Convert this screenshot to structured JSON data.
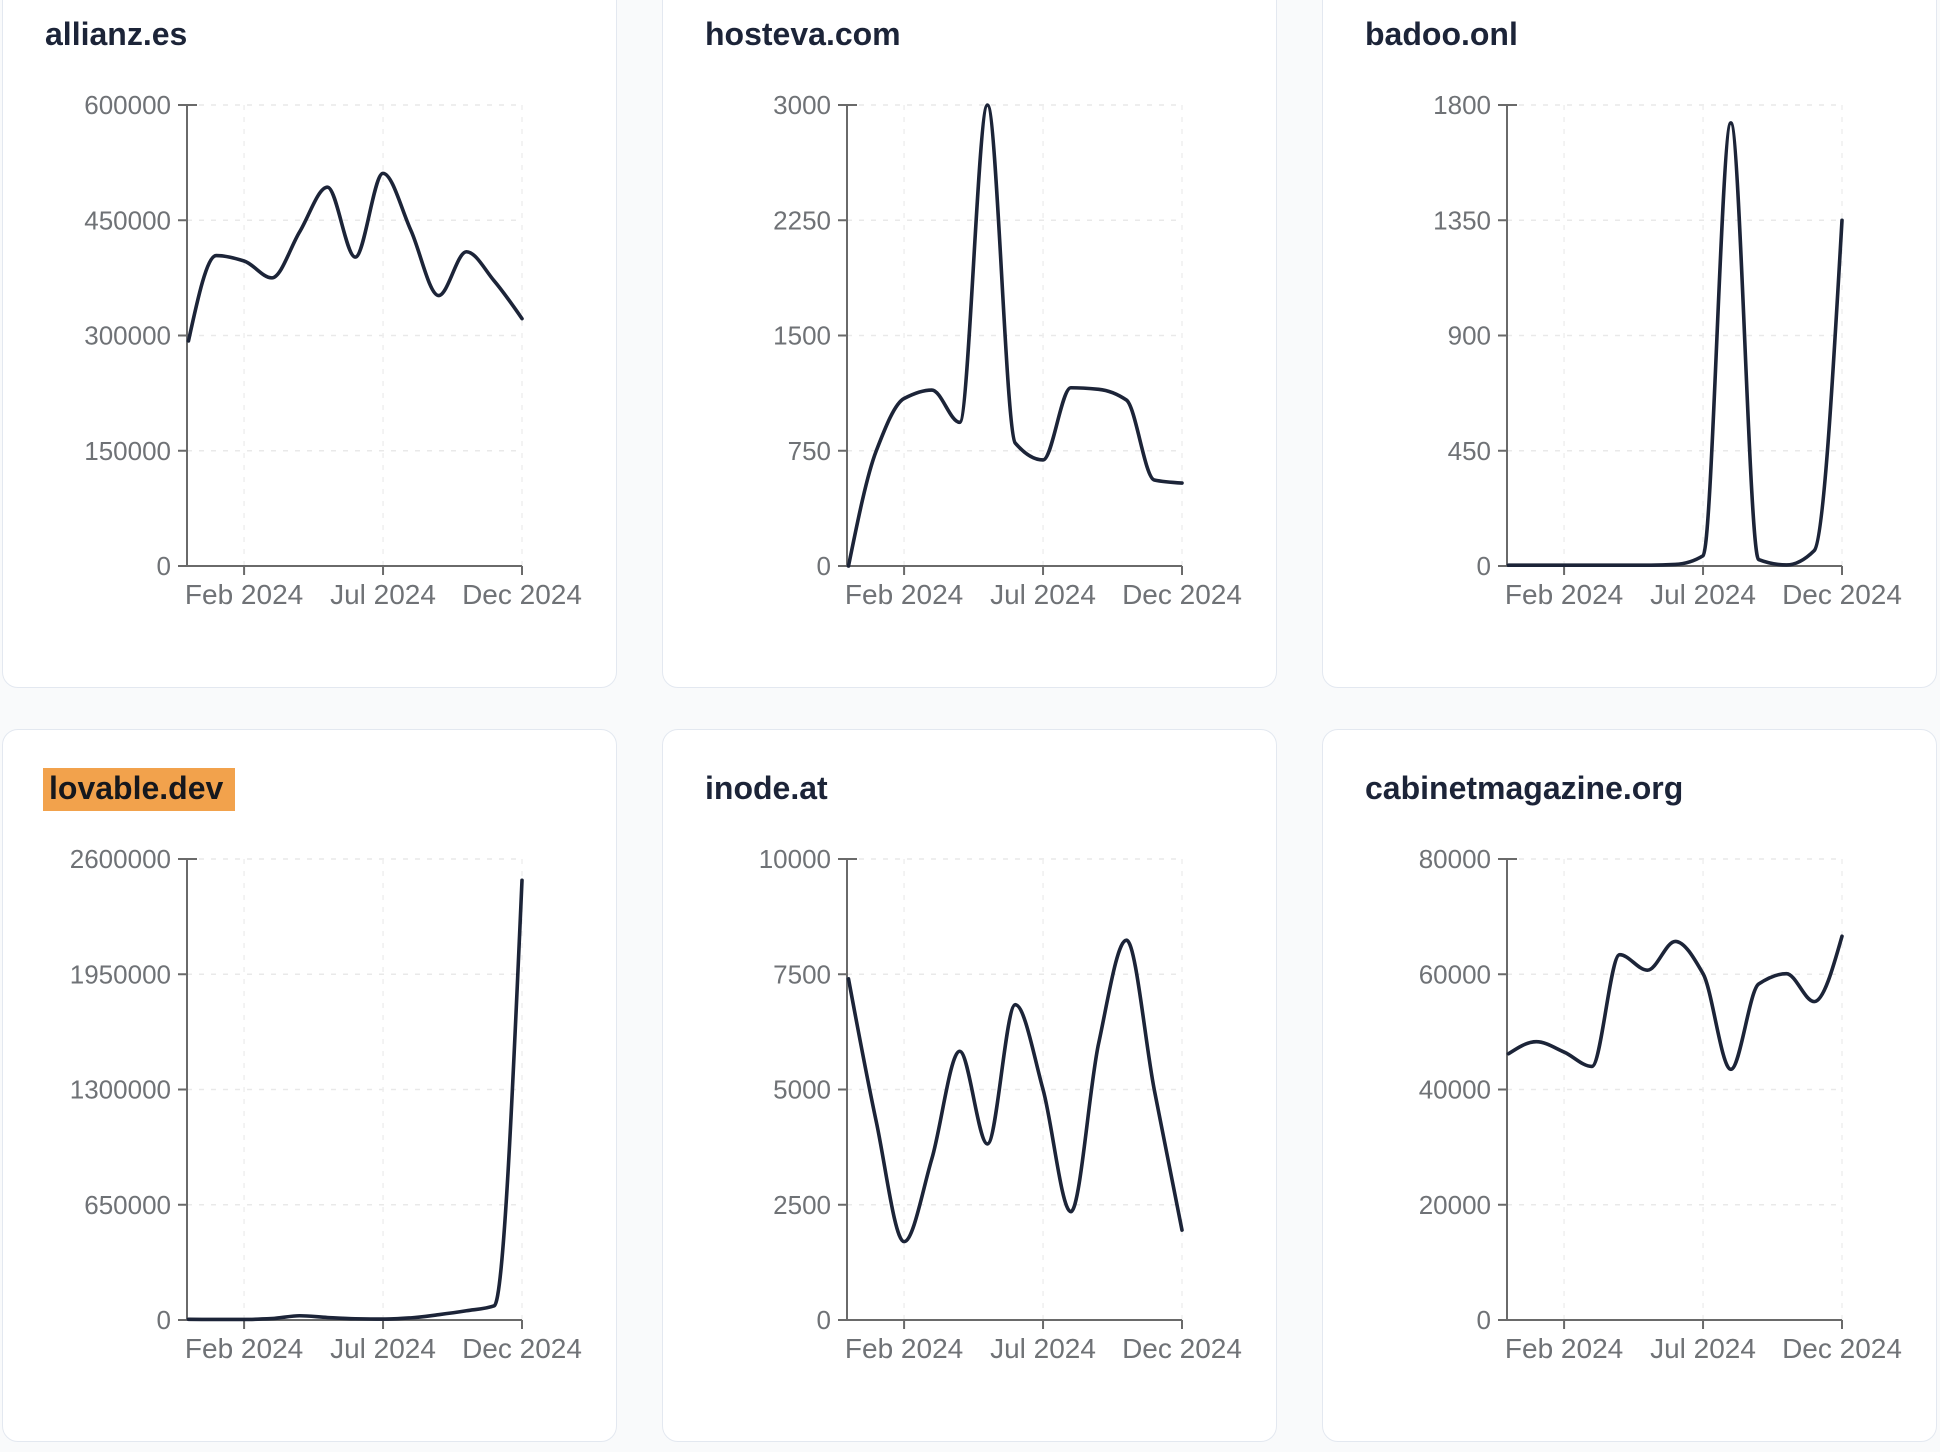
{
  "theme": {
    "page_background": "#f9fafb",
    "card_background": "#ffffff",
    "card_border": "#e3e8f0",
    "title_color": "#1c2438",
    "line_color": "#1c2438",
    "axis_color": "#6a6a6a",
    "tick_label_color": "#6f7276",
    "grid_color": "#e9e9e9",
    "highlight_color": "#f2a24c"
  },
  "chart_data": [
    {
      "type": "line",
      "title": "allianz.es",
      "highlighted": false,
      "x": [
        "Dec 2023",
        "Jan 2024",
        "Feb 2024",
        "Mar 2024",
        "Apr 2024",
        "May 2024",
        "Jun 2024",
        "Jul 2024",
        "Aug 2024",
        "Sep 2024",
        "Oct 2024",
        "Nov 2024",
        "Dec 2024"
      ],
      "values": [
        293000,
        404000,
        397000,
        375000,
        435000,
        493000,
        402000,
        511000,
        437000,
        352000,
        409000,
        371000,
        322000
      ],
      "ylim": [
        0,
        600000
      ],
      "y_ticks": [
        0,
        150000,
        300000,
        450000,
        600000
      ],
      "x_tick_labels": [
        "Feb 2024",
        "Jul 2024",
        "Dec 2024"
      ],
      "grid": true,
      "legend": "none"
    },
    {
      "type": "line",
      "title": "hosteva.com",
      "highlighted": false,
      "x": [
        "Dec 2023",
        "Jan 2024",
        "Feb 2024",
        "Mar 2024",
        "Apr 2024",
        "May 2024",
        "Jun 2024",
        "Jul 2024",
        "Aug 2024",
        "Sep 2024",
        "Oct 2024",
        "Nov 2024",
        "Dec 2024"
      ],
      "values": [
        0,
        750,
        1090,
        1145,
        935,
        3000,
        800,
        690,
        1160,
        1150,
        1080,
        560,
        540
      ],
      "ylim": [
        0,
        3000
      ],
      "y_ticks": [
        0,
        750,
        1500,
        2250,
        3000
      ],
      "x_tick_labels": [
        "Feb 2024",
        "Jul 2024",
        "Dec 2024"
      ],
      "grid": true,
      "legend": "none"
    },
    {
      "type": "line",
      "title": "badoo.onl",
      "highlighted": false,
      "x": [
        "Dec 2023",
        "Jan 2024",
        "Feb 2024",
        "Mar 2024",
        "Apr 2024",
        "May 2024",
        "Jun 2024",
        "Jul 2024",
        "Aug 2024",
        "Sep 2024",
        "Oct 2024",
        "Nov 2024",
        "Dec 2024"
      ],
      "values": [
        3,
        3,
        3,
        3,
        3,
        3,
        6,
        40,
        1730,
        25,
        4,
        60,
        1350
      ],
      "ylim": [
        0,
        1800
      ],
      "y_ticks": [
        0,
        450,
        900,
        1350,
        1800
      ],
      "x_tick_labels": [
        "Feb 2024",
        "Jul 2024",
        "Dec 2024"
      ],
      "grid": true,
      "legend": "none"
    },
    {
      "type": "line",
      "title": "lovable.dev",
      "highlighted": true,
      "x": [
        "Dec 2023",
        "Jan 2024",
        "Feb 2024",
        "Mar 2024",
        "Apr 2024",
        "May 2024",
        "Jun 2024",
        "Jul 2024",
        "Aug 2024",
        "Sep 2024",
        "Oct 2024",
        "Nov 2024",
        "Dec 2024"
      ],
      "values": [
        4000,
        3000,
        3000,
        8000,
        24000,
        14000,
        7000,
        5000,
        12000,
        30000,
        52000,
        80000,
        2480000
      ],
      "ylim": [
        0,
        2600000
      ],
      "y_ticks": [
        0,
        650000,
        1300000,
        1950000,
        2600000
      ],
      "x_tick_labels": [
        "Feb 2024",
        "Jul 2024",
        "Dec 2024"
      ],
      "grid": true,
      "legend": "none"
    },
    {
      "type": "line",
      "title": "inode.at",
      "highlighted": false,
      "x": [
        "Dec 2023",
        "Jan 2024",
        "Feb 2024",
        "Mar 2024",
        "Apr 2024",
        "May 2024",
        "Jun 2024",
        "Jul 2024",
        "Aug 2024",
        "Sep 2024",
        "Oct 2024",
        "Nov 2024",
        "Dec 2024"
      ],
      "values": [
        7400,
        4300,
        1700,
        3500,
        5830,
        3820,
        6840,
        5000,
        2350,
        6000,
        8240,
        5000,
        1950
      ],
      "ylim": [
        0,
        10000
      ],
      "y_ticks": [
        0,
        2500,
        5000,
        7500,
        10000
      ],
      "x_tick_labels": [
        "Feb 2024",
        "Jul 2024",
        "Dec 2024"
      ],
      "grid": true,
      "legend": "none"
    },
    {
      "type": "line",
      "title": "cabinetmagazine.org",
      "highlighted": false,
      "x": [
        "Dec 2023",
        "Jan 2024",
        "Feb 2024",
        "Mar 2024",
        "Apr 2024",
        "May 2024",
        "Jun 2024",
        "Jul 2024",
        "Aug 2024",
        "Sep 2024",
        "Oct 2024",
        "Nov 2024",
        "Dec 2024"
      ],
      "values": [
        46200,
        48300,
        46500,
        44000,
        63400,
        60700,
        65700,
        60100,
        43500,
        58300,
        60100,
        55250,
        66600
      ],
      "ylim": [
        0,
        80000
      ],
      "y_ticks": [
        0,
        20000,
        40000,
        60000,
        80000
      ],
      "x_tick_labels": [
        "Feb 2024",
        "Jul 2024",
        "Dec 2024"
      ],
      "grid": true,
      "legend": "none"
    }
  ]
}
